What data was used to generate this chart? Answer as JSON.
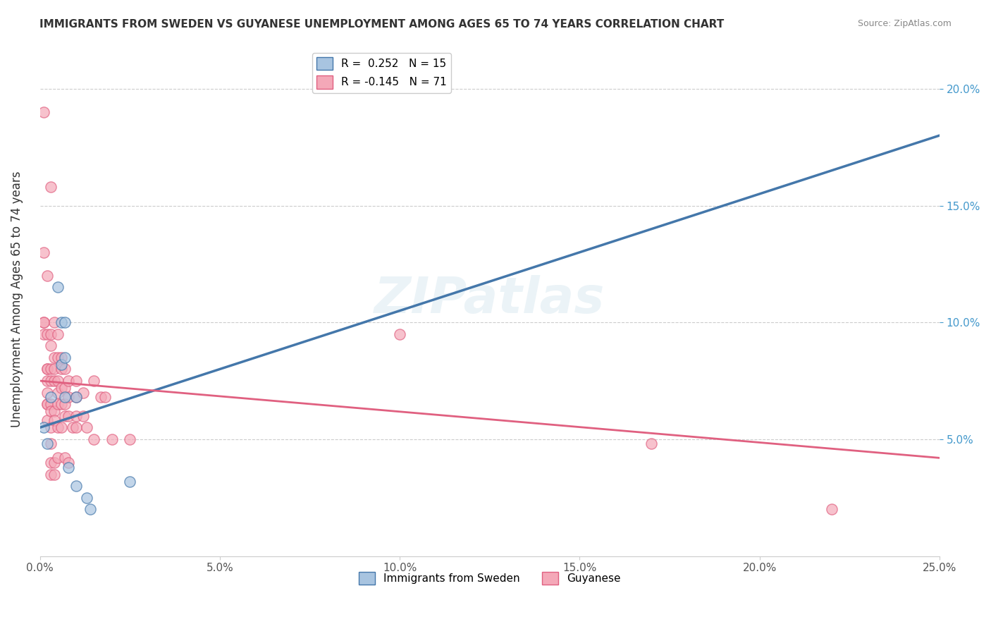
{
  "title": "IMMIGRANTS FROM SWEDEN VS GUYANESE UNEMPLOYMENT AMONG AGES 65 TO 74 YEARS CORRELATION CHART",
  "source": "Source: ZipAtlas.com",
  "xlabel": "",
  "ylabel": "Unemployment Among Ages 65 to 74 years",
  "xlim": [
    0,
    0.25
  ],
  "ylim": [
    0,
    0.22
  ],
  "xticks": [
    0.0,
    0.05,
    0.1,
    0.15,
    0.2,
    0.25
  ],
  "xticklabels": [
    "0.0%",
    "5.0%",
    "10.0%",
    "15.0%",
    "20.0%",
    "25.0%"
  ],
  "yticks_left": [
    0.0,
    0.05,
    0.1,
    0.15,
    0.2
  ],
  "yticklabels_left": [
    "",
    "",
    "",
    "",
    ""
  ],
  "yticks_right": [
    0.05,
    0.1,
    0.15,
    0.2
  ],
  "yticklabels_right": [
    "5.0%",
    "10.0%",
    "15.0%",
    "20.0%"
  ],
  "legend_entry1": "R =  0.252   N = 15",
  "legend_entry2": "R = -0.145   N = 71",
  "color_blue": "#a8c4e0",
  "color_pink": "#f4a8b8",
  "trendline_blue": "#4477aa",
  "trendline_pink": "#e06080",
  "trendline_gray": "#c0c0c0",
  "watermark": "ZIPatlas",
  "blue_points": [
    [
      0.001,
      0.055
    ],
    [
      0.002,
      0.048
    ],
    [
      0.003,
      0.068
    ],
    [
      0.005,
      0.115
    ],
    [
      0.006,
      0.082
    ],
    [
      0.006,
      0.1
    ],
    [
      0.007,
      0.068
    ],
    [
      0.007,
      0.1
    ],
    [
      0.007,
      0.085
    ],
    [
      0.008,
      0.038
    ],
    [
      0.01,
      0.03
    ],
    [
      0.01,
      0.068
    ],
    [
      0.013,
      0.025
    ],
    [
      0.014,
      0.02
    ],
    [
      0.025,
      0.032
    ]
  ],
  "pink_points": [
    [
      0.001,
      0.19
    ],
    [
      0.001,
      0.13
    ],
    [
      0.001,
      0.1
    ],
    [
      0.001,
      0.095
    ],
    [
      0.001,
      0.1
    ],
    [
      0.002,
      0.12
    ],
    [
      0.002,
      0.095
    ],
    [
      0.002,
      0.08
    ],
    [
      0.002,
      0.08
    ],
    [
      0.002,
      0.075
    ],
    [
      0.002,
      0.07
    ],
    [
      0.002,
      0.065
    ],
    [
      0.002,
      0.065
    ],
    [
      0.002,
      0.058
    ],
    [
      0.003,
      0.158
    ],
    [
      0.003,
      0.095
    ],
    [
      0.003,
      0.09
    ],
    [
      0.003,
      0.08
    ],
    [
      0.003,
      0.075
    ],
    [
      0.003,
      0.065
    ],
    [
      0.003,
      0.062
    ],
    [
      0.003,
      0.055
    ],
    [
      0.003,
      0.048
    ],
    [
      0.003,
      0.04
    ],
    [
      0.003,
      0.035
    ],
    [
      0.004,
      0.1
    ],
    [
      0.004,
      0.085
    ],
    [
      0.004,
      0.08
    ],
    [
      0.004,
      0.075
    ],
    [
      0.004,
      0.062
    ],
    [
      0.004,
      0.058
    ],
    [
      0.004,
      0.04
    ],
    [
      0.004,
      0.035
    ],
    [
      0.005,
      0.095
    ],
    [
      0.005,
      0.085
    ],
    [
      0.005,
      0.075
    ],
    [
      0.005,
      0.07
    ],
    [
      0.005,
      0.065
    ],
    [
      0.005,
      0.055
    ],
    [
      0.005,
      0.042
    ],
    [
      0.006,
      0.085
    ],
    [
      0.006,
      0.08
    ],
    [
      0.006,
      0.072
    ],
    [
      0.006,
      0.065
    ],
    [
      0.006,
      0.055
    ],
    [
      0.007,
      0.08
    ],
    [
      0.007,
      0.072
    ],
    [
      0.007,
      0.065
    ],
    [
      0.007,
      0.06
    ],
    [
      0.007,
      0.042
    ],
    [
      0.008,
      0.075
    ],
    [
      0.008,
      0.068
    ],
    [
      0.008,
      0.06
    ],
    [
      0.008,
      0.04
    ],
    [
      0.009,
      0.055
    ],
    [
      0.01,
      0.075
    ],
    [
      0.01,
      0.068
    ],
    [
      0.01,
      0.06
    ],
    [
      0.01,
      0.055
    ],
    [
      0.012,
      0.07
    ],
    [
      0.012,
      0.06
    ],
    [
      0.013,
      0.055
    ],
    [
      0.015,
      0.075
    ],
    [
      0.015,
      0.05
    ],
    [
      0.017,
      0.068
    ],
    [
      0.018,
      0.068
    ],
    [
      0.02,
      0.05
    ],
    [
      0.025,
      0.05
    ],
    [
      0.1,
      0.095
    ],
    [
      0.17,
      0.048
    ],
    [
      0.22,
      0.02
    ]
  ],
  "blue_trend_x": [
    0.0,
    0.25
  ],
  "blue_trend_y_start": 0.055,
  "blue_trend_y_end": 0.18,
  "pink_trend_x": [
    0.0,
    0.25
  ],
  "pink_trend_y_start": 0.075,
  "pink_trend_y_end": 0.042
}
